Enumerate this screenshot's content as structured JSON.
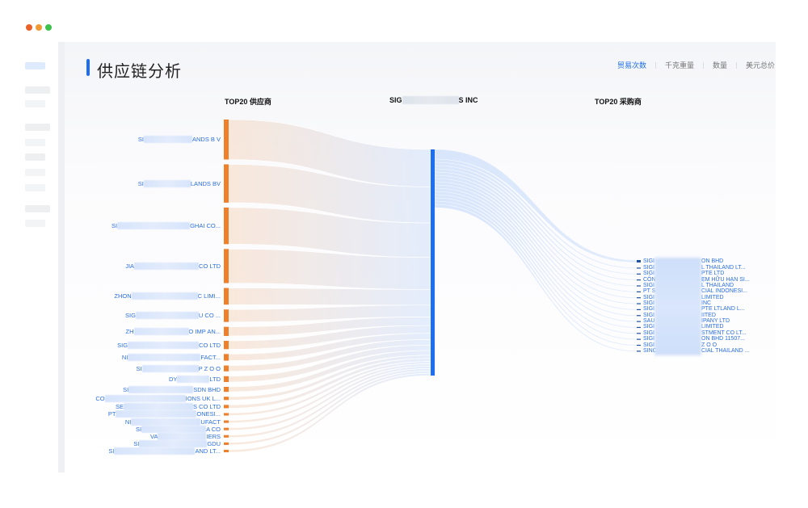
{
  "window_controls": {
    "colors": [
      "#e8622a",
      "#f09a35",
      "#3cc14a"
    ]
  },
  "page": {
    "title": "供应链分析",
    "accent": "#1e6ff0"
  },
  "metric_tabs": [
    {
      "label": "贸易次数",
      "active": true
    },
    {
      "label": "千克重量",
      "active": false
    },
    {
      "label": "数量",
      "active": false
    },
    {
      "label": "美元总价",
      "active": false
    }
  ],
  "columns": {
    "suppliers": "TOP20 供应商",
    "center_prefix": "SIG",
    "center_suffix": "S INC",
    "buyers": "TOP20 采购商"
  },
  "colors": {
    "supplier_node": "#f07f2a",
    "center_node": "#1e6ff0",
    "buyer_node": "#1e4f9e",
    "label": "#2a6fe0"
  },
  "suppliers": [
    {
      "prefix": "SI",
      "suffix": "ANDS B V",
      "value": 48
    },
    {
      "prefix": "SI",
      "suffix": "LANDS BV",
      "value": 46
    },
    {
      "prefix": "SI",
      "suffix": "GHAI CO...",
      "value": 44
    },
    {
      "prefix": "JIA",
      "suffix": "CO LTD",
      "value": 41
    },
    {
      "prefix": "ZHON",
      "suffix": "C LIMI...",
      "value": 20
    },
    {
      "prefix": "SIG",
      "suffix": "U CO ...",
      "value": 15
    },
    {
      "prefix": "ZH",
      "suffix": "O IMP AN...",
      "value": 11
    },
    {
      "prefix": "SIG",
      "suffix": "CO LTD",
      "value": 10
    },
    {
      "prefix": "NI",
      "suffix": "FACT...",
      "value": 8
    },
    {
      "prefix": "SI",
      "suffix": "P Z O O",
      "value": 7
    },
    {
      "prefix": "DY",
      "suffix": "LTD",
      "value": 7
    },
    {
      "prefix": "SI",
      "suffix": "SDN BHD",
      "value": 6
    },
    {
      "prefix": "CO",
      "suffix": "IONS UK L...",
      "value": 4
    },
    {
      "prefix": "SE",
      "suffix": "S CO LTD",
      "value": 4
    },
    {
      "prefix": "PT",
      "suffix": "ONESI...",
      "value": 3
    },
    {
      "prefix": "NI",
      "suffix": "UFACT",
      "value": 3
    },
    {
      "prefix": "SI",
      "suffix": "A CO",
      "value": 3
    },
    {
      "prefix": "VA",
      "suffix": "IERS",
      "value": 3
    },
    {
      "prefix": "SI",
      "suffix": "GDU",
      "value": 3
    },
    {
      "prefix": "SI",
      "suffix": "AND LT...",
      "value": 3
    }
  ],
  "buyers": [
    {
      "prefix": "SIGI",
      "suffix": "ON BHD",
      "value": 3
    },
    {
      "prefix": "SIGI",
      "suffix": "L THAILAND LT...",
      "value": 1
    },
    {
      "prefix": "SIGI",
      "suffix": "PTE LTD",
      "value": 1
    },
    {
      "prefix": "CÔN",
      "suffix": "ẸM HỮU HẠN SI...",
      "value": 1
    },
    {
      "prefix": "SIGI",
      "suffix": "L THAILAND",
      "value": 1
    },
    {
      "prefix": "PT S",
      "suffix": "CIAL INDONESI...",
      "value": 1
    },
    {
      "prefix": "SIGI",
      "suffix": "LIMITED",
      "value": 1
    },
    {
      "prefix": "SIGI",
      "suffix": "INC",
      "value": 1
    },
    {
      "prefix": "SIGI",
      "suffix": "PTE LTLAND L...",
      "value": 1
    },
    {
      "prefix": "SIGI",
      "suffix": "IITED",
      "value": 1
    },
    {
      "prefix": "SAU",
      "suffix": "IPANY LTD",
      "value": 1
    },
    {
      "prefix": "SIGI",
      "suffix": "LIMITED",
      "value": 1
    },
    {
      "prefix": "SIGI",
      "suffix": "STMENT CO LT...",
      "value": 1
    },
    {
      "prefix": "SIGI",
      "suffix": "ON BHD 11507...",
      "value": 1
    },
    {
      "prefix": "SIGI",
      "suffix": "Z O O",
      "value": 1
    },
    {
      "prefix": "SINC",
      "suffix": "CIAL THAILAND ...",
      "value": 1
    }
  ]
}
